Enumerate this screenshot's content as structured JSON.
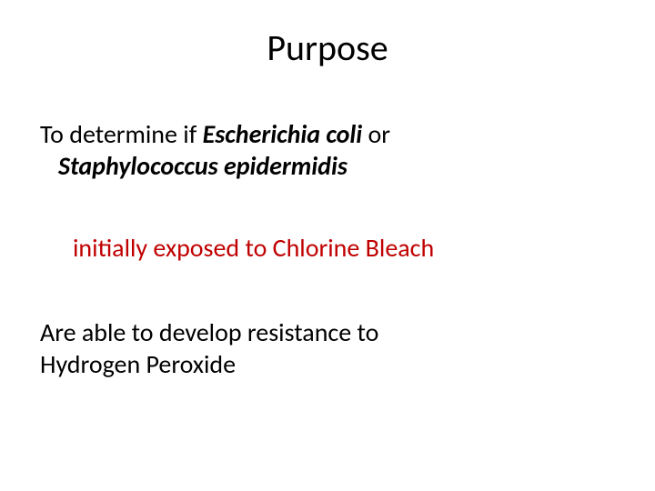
{
  "background_color": "#ffffff",
  "title": {
    "text": "Purpose",
    "fontsize": 40,
    "color": "#000000",
    "align": "center"
  },
  "body": {
    "fontsize": 28,
    "color_default": "#000000",
    "color_highlight": "#c00000",
    "line1": {
      "seg1": "To determine if ",
      "seg2": "Escherichia coli ",
      "seg3": "or"
    },
    "line2": {
      "seg1": "Staphylococcus epidermidis"
    },
    "line3": {
      "seg1": "initially exposed to Chlorine Bleach"
    },
    "line4": {
      "seg1": "Are able to develop resistance to"
    },
    "line5": {
      "seg1": "Hydrogen Peroxide"
    }
  }
}
